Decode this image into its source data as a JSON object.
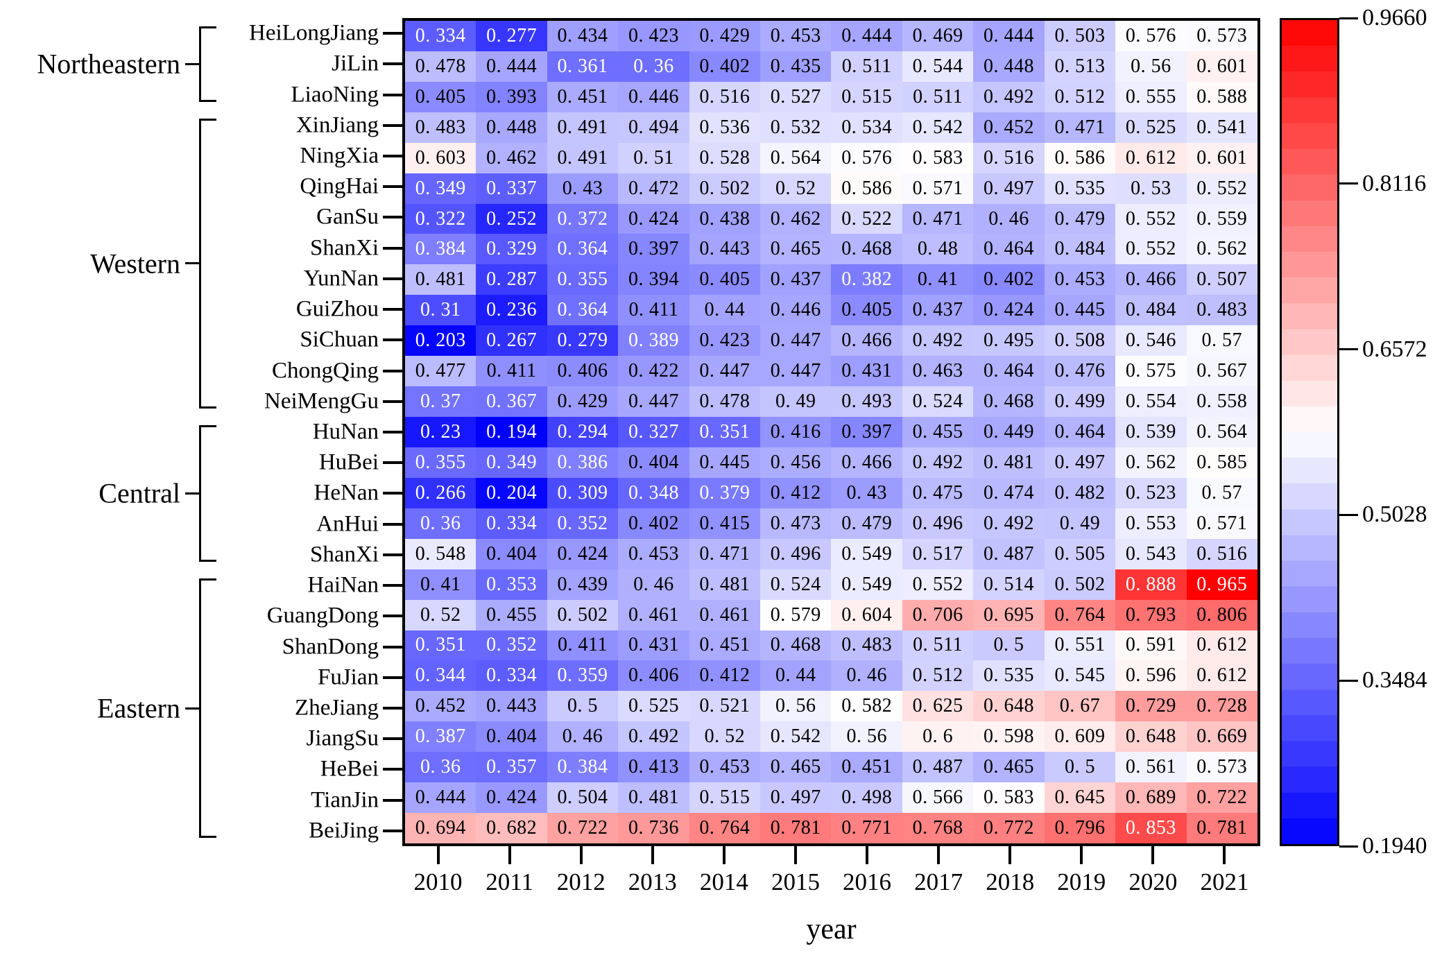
{
  "chart_data": {
    "type": "heatmap",
    "xlabel": "year",
    "years": [
      "2010",
      "2011",
      "2012",
      "2013",
      "2014",
      "2015",
      "2016",
      "2017",
      "2018",
      "2019",
      "2020",
      "2021"
    ],
    "rows": [
      {
        "province": "HeiLongJiang",
        "values": [
          0.334,
          0.277,
          0.434,
          0.423,
          0.429,
          0.453,
          0.444,
          0.469,
          0.444,
          0.503,
          0.576,
          0.573
        ]
      },
      {
        "province": "JiLin",
        "values": [
          0.478,
          0.444,
          0.361,
          0.36,
          0.402,
          0.435,
          0.511,
          0.544,
          0.448,
          0.513,
          0.56,
          0.601
        ]
      },
      {
        "province": "LiaoNing",
        "values": [
          0.405,
          0.393,
          0.451,
          0.446,
          0.516,
          0.527,
          0.515,
          0.511,
          0.492,
          0.512,
          0.555,
          0.588
        ]
      },
      {
        "province": "XinJiang",
        "values": [
          0.483,
          0.448,
          0.491,
          0.494,
          0.536,
          0.532,
          0.534,
          0.542,
          0.452,
          0.471,
          0.525,
          0.541
        ]
      },
      {
        "province": "NingXia",
        "values": [
          0.603,
          0.462,
          0.491,
          0.51,
          0.528,
          0.564,
          0.576,
          0.583,
          0.516,
          0.586,
          0.612,
          0.601
        ]
      },
      {
        "province": "QingHai",
        "values": [
          0.349,
          0.337,
          0.43,
          0.472,
          0.502,
          0.52,
          0.586,
          0.571,
          0.497,
          0.535,
          0.53,
          0.552
        ]
      },
      {
        "province": "GanSu",
        "values": [
          0.322,
          0.252,
          0.372,
          0.424,
          0.438,
          0.462,
          0.522,
          0.471,
          0.46,
          0.479,
          0.552,
          0.559
        ]
      },
      {
        "province": "ShanXi",
        "values": [
          0.384,
          0.329,
          0.364,
          0.397,
          0.443,
          0.465,
          0.468,
          0.48,
          0.464,
          0.484,
          0.552,
          0.562
        ]
      },
      {
        "province": "YunNan",
        "values": [
          0.481,
          0.287,
          0.355,
          0.394,
          0.405,
          0.437,
          0.382,
          0.41,
          0.402,
          0.453,
          0.466,
          0.507
        ]
      },
      {
        "province": "GuiZhou",
        "values": [
          0.31,
          0.236,
          0.364,
          0.411,
          0.44,
          0.446,
          0.405,
          0.437,
          0.424,
          0.445,
          0.484,
          0.483
        ]
      },
      {
        "province": "SiChuan",
        "values": [
          0.203,
          0.267,
          0.279,
          0.389,
          0.423,
          0.447,
          0.466,
          0.492,
          0.495,
          0.508,
          0.546,
          0.57
        ]
      },
      {
        "province": "ChongQing",
        "values": [
          0.477,
          0.411,
          0.406,
          0.422,
          0.447,
          0.447,
          0.431,
          0.463,
          0.464,
          0.476,
          0.575,
          0.567
        ]
      },
      {
        "province": "NeiMengGu",
        "values": [
          0.37,
          0.367,
          0.429,
          0.447,
          0.478,
          0.49,
          0.493,
          0.524,
          0.468,
          0.499,
          0.554,
          0.558
        ]
      },
      {
        "province": "HuNan",
        "values": [
          0.23,
          0.194,
          0.294,
          0.327,
          0.351,
          0.416,
          0.397,
          0.455,
          0.449,
          0.464,
          0.539,
          0.564
        ]
      },
      {
        "province": "HuBei",
        "values": [
          0.355,
          0.349,
          0.386,
          0.404,
          0.445,
          0.456,
          0.466,
          0.492,
          0.481,
          0.497,
          0.562,
          0.585
        ]
      },
      {
        "province": "HeNan",
        "values": [
          0.266,
          0.204,
          0.309,
          0.348,
          0.379,
          0.412,
          0.43,
          0.475,
          0.474,
          0.482,
          0.523,
          0.57
        ]
      },
      {
        "province": "AnHui",
        "values": [
          0.36,
          0.334,
          0.352,
          0.402,
          0.415,
          0.473,
          0.479,
          0.496,
          0.492,
          0.49,
          0.553,
          0.571
        ]
      },
      {
        "province": "ShanXi",
        "values": [
          0.548,
          0.404,
          0.424,
          0.453,
          0.471,
          0.496,
          0.549,
          0.517,
          0.487,
          0.505,
          0.543,
          0.516
        ]
      },
      {
        "province": "HaiNan",
        "values": [
          0.41,
          0.353,
          0.439,
          0.46,
          0.481,
          0.524,
          0.549,
          0.552,
          0.514,
          0.502,
          0.888,
          0.965
        ]
      },
      {
        "province": "GuangDong",
        "values": [
          0.52,
          0.455,
          0.502,
          0.461,
          0.461,
          0.579,
          0.604,
          0.706,
          0.695,
          0.764,
          0.793,
          0.806
        ]
      },
      {
        "province": "ShanDong",
        "values": [
          0.351,
          0.352,
          0.411,
          0.431,
          0.451,
          0.468,
          0.483,
          0.511,
          0.5,
          0.551,
          0.591,
          0.612
        ]
      },
      {
        "province": "FuJian",
        "values": [
          0.344,
          0.334,
          0.359,
          0.406,
          0.412,
          0.44,
          0.46,
          0.512,
          0.535,
          0.545,
          0.596,
          0.612
        ]
      },
      {
        "province": "ZheJiang",
        "values": [
          0.452,
          0.443,
          0.5,
          0.525,
          0.521,
          0.56,
          0.582,
          0.625,
          0.648,
          0.67,
          0.729,
          0.728
        ]
      },
      {
        "province": "JiangSu",
        "values": [
          0.387,
          0.404,
          0.46,
          0.492,
          0.52,
          0.542,
          0.56,
          0.6,
          0.598,
          0.609,
          0.648,
          0.669
        ]
      },
      {
        "province": "HeBei",
        "values": [
          0.36,
          0.357,
          0.384,
          0.413,
          0.453,
          0.465,
          0.451,
          0.487,
          0.465,
          0.5,
          0.561,
          0.573
        ]
      },
      {
        "province": "TianJin",
        "values": [
          0.444,
          0.424,
          0.504,
          0.481,
          0.515,
          0.497,
          0.498,
          0.566,
          0.583,
          0.645,
          0.689,
          0.722
        ]
      },
      {
        "province": "BeiJing",
        "values": [
          0.694,
          0.682,
          0.722,
          0.736,
          0.764,
          0.781,
          0.771,
          0.768,
          0.772,
          0.796,
          0.853,
          0.781
        ]
      }
    ],
    "region_brackets": [
      {
        "label": "Northeastern",
        "from_row": 0,
        "to_row": 2
      },
      {
        "label": "Western",
        "from_row": 3,
        "to_row": 12
      },
      {
        "label": "Central",
        "from_row": 13,
        "to_row": 17
      },
      {
        "label": "Eastern",
        "from_row": 18,
        "to_row": 26
      }
    ],
    "colorbar": {
      "vmin": 0.194,
      "vmax": 0.966,
      "tick_labels": [
        "0.9660",
        "0.8116",
        "0.6572",
        "0.5028",
        "0.3484",
        "0.1940"
      ],
      "colormap": "blue-white-red",
      "steps": 32
    },
    "colors": {
      "low": "#0000ff",
      "mid": "#ffffff",
      "high": "#ff0000",
      "border": "#000000"
    }
  }
}
